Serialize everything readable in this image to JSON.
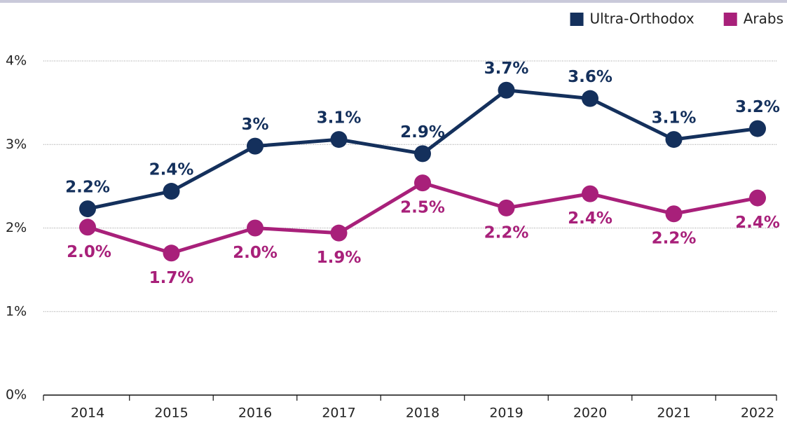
{
  "chart_data": {
    "type": "line",
    "categories": [
      "2014",
      "2015",
      "2016",
      "2017",
      "2018",
      "2019",
      "2020",
      "2021",
      "2022"
    ],
    "series": [
      {
        "name": "Ultra-Orthodox",
        "color": "#14305c",
        "values": [
          2.23,
          2.44,
          2.98,
          3.06,
          2.89,
          3.65,
          3.55,
          3.06,
          3.19
        ],
        "value_labels": [
          "2.2%",
          "2.4%",
          "3%",
          "3.1%",
          "2.9%",
          "3.7%",
          "3.6%",
          "3.1%",
          "3.2%"
        ]
      },
      {
        "name": "Arabs",
        "color": "#a8207a",
        "values": [
          2.01,
          1.7,
          2.0,
          1.94,
          2.54,
          2.24,
          2.41,
          2.17,
          2.36
        ],
        "value_labels": [
          "2.0%",
          "1.7%",
          "2.0%",
          "1.9%",
          "2.5%",
          "2.2%",
          "2.4%",
          "2.2%",
          "2.4%"
        ]
      }
    ],
    "ylim": [
      0,
      4
    ],
    "yticks": [
      {
        "value": 0,
        "label": "0%"
      },
      {
        "value": 1,
        "label": "1%"
      },
      {
        "value": 2,
        "label": "2%"
      },
      {
        "value": 3,
        "label": "3%"
      },
      {
        "value": 4,
        "label": "4%"
      }
    ],
    "grid": true,
    "legend": "top-right"
  }
}
